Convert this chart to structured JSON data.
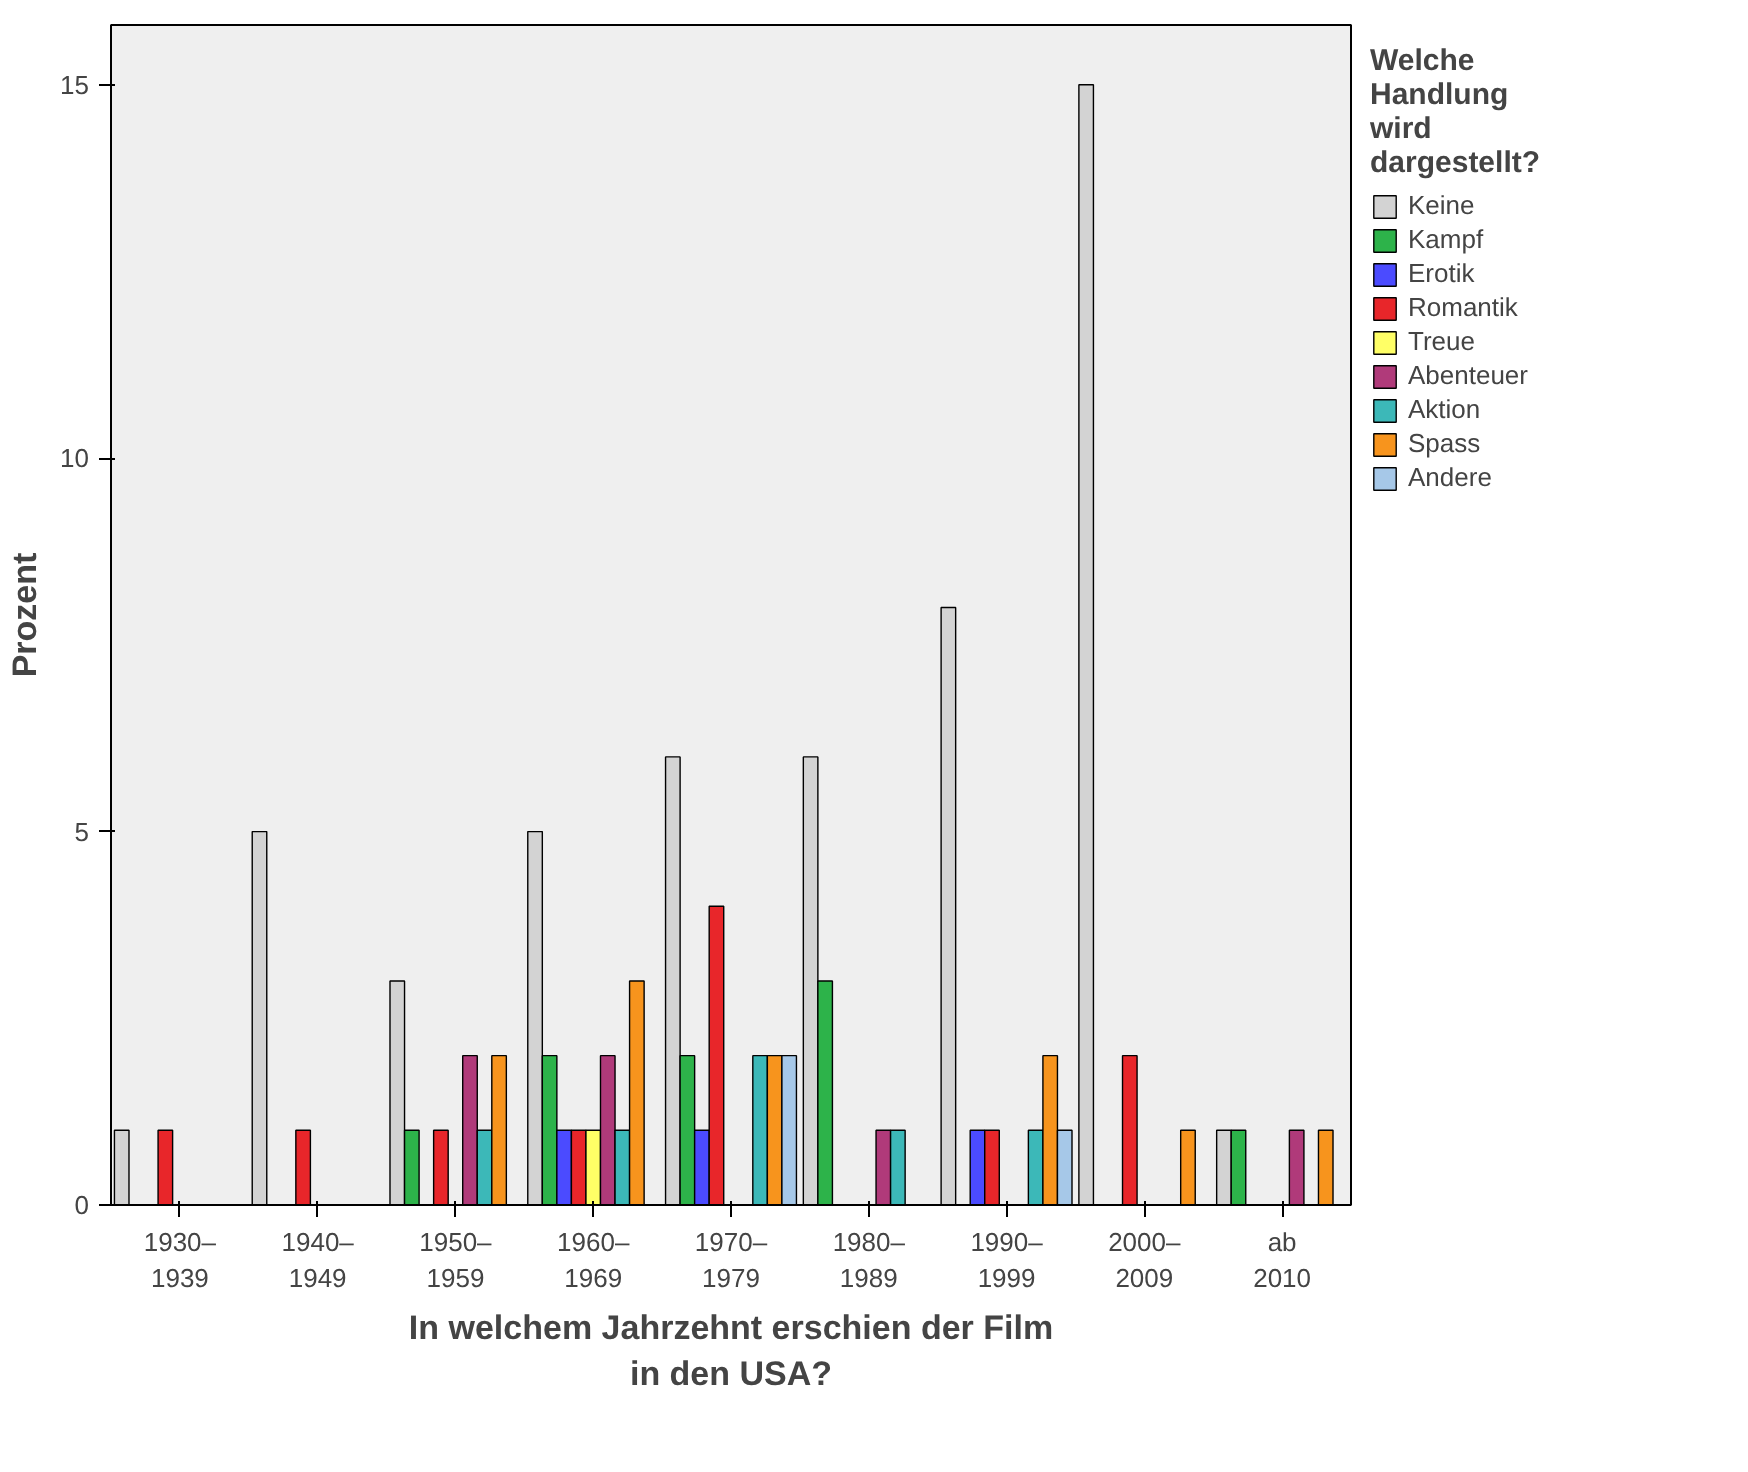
{
  "chart_data": {
    "type": "bar",
    "xlabel": "In welchem Jahrzehnt erschien der Film in den USA?",
    "ylabel": "Prozent",
    "legend_title": "Welche Handlung wird dargestellt?",
    "categories": [
      "1930–1939",
      "1940–1949",
      "1950–1959",
      "1960–1969",
      "1970–1979",
      "1980–1989",
      "1990–1999",
      "2000–2009",
      "ab 2010"
    ],
    "series": [
      {
        "name": "Keine",
        "color": "#d3d3d3",
        "values": [
          1,
          5,
          3,
          5,
          6,
          6,
          8,
          15,
          1
        ]
      },
      {
        "name": "Kampf",
        "color": "#2db34a",
        "values": [
          null,
          null,
          1,
          2,
          2,
          3,
          null,
          null,
          1
        ]
      },
      {
        "name": "Erotik",
        "color": "#4b4bff",
        "values": [
          null,
          null,
          null,
          1,
          1,
          null,
          1,
          null,
          null
        ]
      },
      {
        "name": "Romantik",
        "color": "#e8262a",
        "values": [
          1,
          1,
          1,
          1,
          4,
          null,
          1,
          2,
          null
        ]
      },
      {
        "name": "Treue",
        "color": "#ffff66",
        "values": [
          null,
          null,
          null,
          1,
          null,
          null,
          null,
          null,
          null
        ]
      },
      {
        "name": "Abenteuer",
        "color": "#b03a7a",
        "values": [
          null,
          null,
          2,
          2,
          null,
          1,
          null,
          null,
          1
        ]
      },
      {
        "name": "Aktion",
        "color": "#3cb8b8",
        "values": [
          null,
          null,
          1,
          1,
          2,
          1,
          1,
          null,
          null
        ]
      },
      {
        "name": "Spass",
        "color": "#f7941d",
        "values": [
          null,
          null,
          2,
          3,
          2,
          null,
          2,
          1,
          1
        ]
      },
      {
        "name": "Andere",
        "color": "#a6c8e8",
        "values": [
          null,
          null,
          null,
          null,
          2,
          null,
          1,
          null,
          null
        ]
      }
    ],
    "ylim": [
      0,
      15.8
    ],
    "yticks": [
      0,
      5,
      10,
      15
    ],
    "grid": false,
    "legend": "right"
  }
}
